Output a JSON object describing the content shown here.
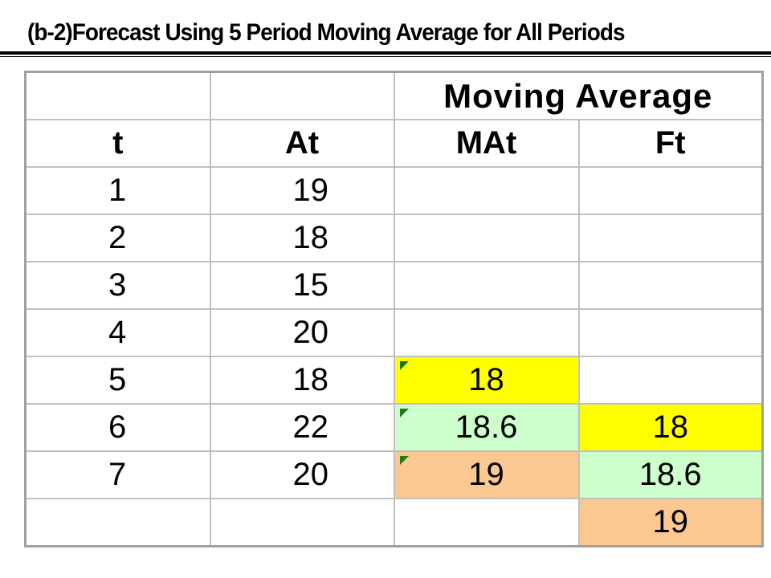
{
  "title": "(b-2)Forecast  Using  5 Period Moving Average for All Periods",
  "table": {
    "group_header": "Moving Average",
    "columns": [
      "t",
      "At",
      "MAt",
      "Ft"
    ],
    "rows": [
      {
        "t": "1",
        "At": "19",
        "MAt": "",
        "Ft": ""
      },
      {
        "t": "2",
        "At": "18",
        "MAt": "",
        "Ft": ""
      },
      {
        "t": "3",
        "At": "15",
        "MAt": "",
        "Ft": ""
      },
      {
        "t": "4",
        "At": "20",
        "MAt": "",
        "Ft": ""
      },
      {
        "t": "5",
        "At": "18",
        "MAt": "18",
        "Ft": ""
      },
      {
        "t": "6",
        "At": "22",
        "MAt": "18.6",
        "Ft": "18"
      },
      {
        "t": "7",
        "At": "20",
        "MAt": "19",
        "Ft": "18.6"
      },
      {
        "t": "",
        "At": "",
        "MAt": "",
        "Ft": "19"
      }
    ]
  },
  "colors": {
    "yellow": "#ffff00",
    "light_green": "#ccffcc",
    "peach": "#fac890",
    "grid_line": "#c0c0c0",
    "marker_green": "#1f7a1f"
  }
}
